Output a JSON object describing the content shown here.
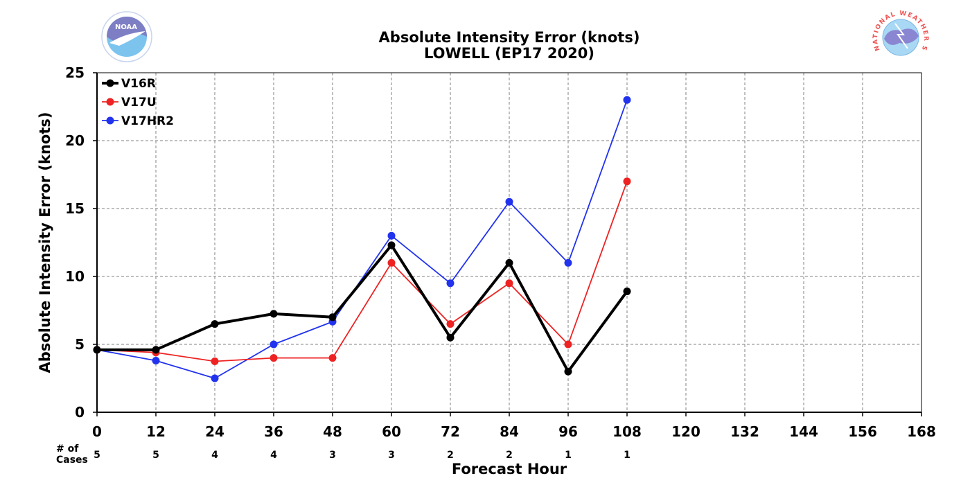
{
  "chart_data": {
    "type": "line",
    "title": "Absolute Intensity Error (knots)",
    "subtitle": "LOWELL (EP17 2020)",
    "xlabel": "Forecast Hour",
    "ylabel": "Absolute Intensity Error (knots)",
    "xlim": [
      0,
      168
    ],
    "ylim": [
      0,
      25
    ],
    "x_ticks": [
      0,
      12,
      24,
      36,
      48,
      60,
      72,
      84,
      96,
      108,
      120,
      132,
      144,
      156,
      168
    ],
    "y_ticks": [
      0,
      5,
      10,
      15,
      20,
      25
    ],
    "grid": true,
    "legend_position": "top-left",
    "cases_label": "# of\nCases",
    "cases": [
      {
        "x": 0,
        "n": "5"
      },
      {
        "x": 12,
        "n": "5"
      },
      {
        "x": 24,
        "n": "4"
      },
      {
        "x": 36,
        "n": "4"
      },
      {
        "x": 48,
        "n": "3"
      },
      {
        "x": 60,
        "n": "3"
      },
      {
        "x": 72,
        "n": "2"
      },
      {
        "x": 84,
        "n": "2"
      },
      {
        "x": 96,
        "n": "1"
      },
      {
        "x": 108,
        "n": "1"
      }
    ],
    "x": [
      0,
      12,
      24,
      36,
      48,
      60,
      72,
      84,
      96,
      108
    ],
    "series": [
      {
        "name": "V16R",
        "color": "#000000",
        "bold": true,
        "values": [
          4.6,
          4.6,
          6.5,
          7.25,
          7.0,
          12.3,
          5.5,
          11.0,
          3.0,
          8.9
        ]
      },
      {
        "name": "V17U",
        "color": "#ee2222",
        "bold": false,
        "values": [
          4.6,
          4.4,
          3.75,
          4.0,
          4.0,
          11.0,
          6.5,
          9.5,
          5.0,
          17.0
        ]
      },
      {
        "name": "V17HR2",
        "color": "#2233ee",
        "bold": false,
        "values": [
          4.6,
          3.8,
          2.5,
          5.0,
          6.67,
          13.0,
          9.5,
          15.5,
          11.0,
          23.0
        ]
      }
    ]
  },
  "logos": {
    "noaa": {
      "text": "NOAA",
      "icon": "noaa-logo-icon"
    },
    "nws": {
      "text": "NATIONAL WEATHER SERVICE",
      "icon": "nws-logo-icon"
    }
  }
}
